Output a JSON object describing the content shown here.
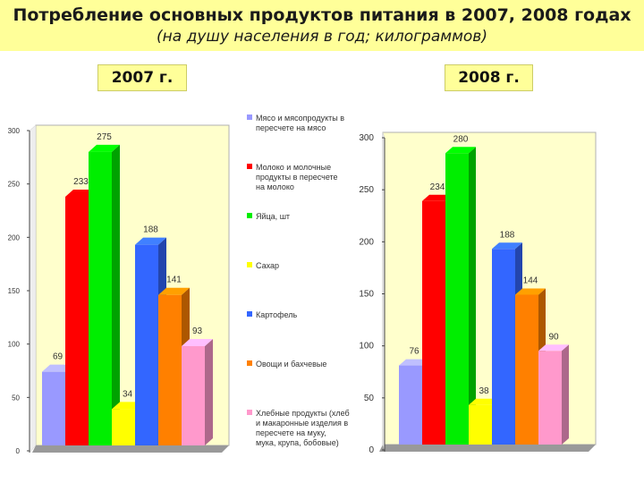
{
  "header": {
    "title": "Потребление основных продуктов питания в 2007, 2008 годах",
    "subtitle": "(на душу населения в год; килограммов)"
  },
  "colors": {
    "header_bg": "#ffff99",
    "plot_bg": "#ffffcc",
    "floor": "#999999"
  },
  "chart_data": [
    {
      "type": "bar",
      "label": "2007 г.",
      "categories": [
        "Мясо и мясопродукты в пересчете на мясо",
        "Молоко и молочные продукты в пересчете на молоко",
        "Яйца, шт",
        "Сахар",
        "Картофель",
        "Овощи и бахчевые",
        "Хлебные продукты (хлеб и макаронные изделия в пересчете на муку, мука, крупа, бобовые)"
      ],
      "values": [
        69,
        233,
        275,
        34,
        188,
        141,
        93
      ],
      "ylim": [
        0,
        300
      ],
      "yticks": [
        0,
        50,
        100,
        150,
        200,
        250,
        300
      ],
      "grid": false
    },
    {
      "type": "bar",
      "label": "2008 г.",
      "categories": [
        "Мясо и мясопродукты в пересчете на мясо",
        "Молоко и молочные продукты в пересчете на молоко",
        "Яйца, шт",
        "Сахар",
        "Картофель",
        "Овощи и бахчевые",
        "Хлебные продукты (хлеб и макаронные изделия в пересчете на муку, мука, крупа, бобовые)"
      ],
      "values": [
        76,
        234,
        280,
        38,
        188,
        144,
        90
      ],
      "ylim": [
        0,
        300
      ],
      "yticks": [
        0,
        50,
        100,
        150,
        200,
        250,
        300
      ],
      "grid": false
    }
  ],
  "legend": {
    "placement": "center",
    "items": [
      {
        "label": "Мясо и мясопродукты в пересчете на мясо",
        "color": "#9999ff"
      },
      {
        "label": "Молоко и молочные продукты в пересчете на молоко",
        "color": "#ff0000"
      },
      {
        "label": "Яйца, шт",
        "color": "#00ee00"
      },
      {
        "label": "Сахар",
        "color": "#ffff00"
      },
      {
        "label": "Картофель",
        "color": "#3366ff"
      },
      {
        "label": "Овощи и бахчевые",
        "color": "#ff8000"
      },
      {
        "label": "Хлебные продукты (хлеб и макаронные изделия в пересчете на муку, мука, крупа, бобовые)",
        "color": "#ff99cc"
      }
    ]
  }
}
